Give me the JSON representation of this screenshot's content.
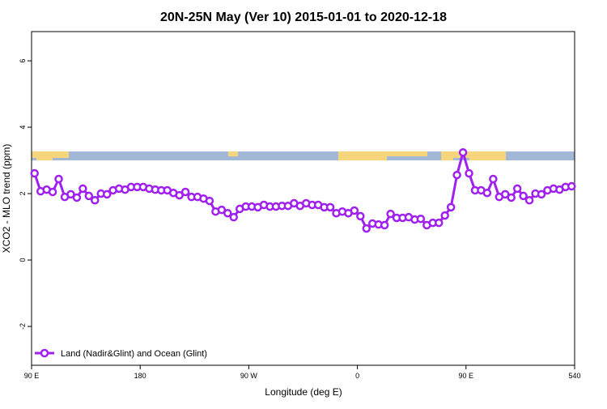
{
  "chart_data": {
    "type": "line",
    "title": "20N-25N May (Ver 10)   2015-01-01 to 2020-12-18",
    "xlabel": "Longitude (deg E)",
    "ylabel": "XCO2 - MLO trend (ppm)",
    "x": [
      92.5,
      97.5,
      102.5,
      107.5,
      112.5,
      117.5,
      122.5,
      127.5,
      132.5,
      137.5,
      142.5,
      147.5,
      152.5,
      157.5,
      162.5,
      167.5,
      172.5,
      177.5,
      182.5,
      187.5,
      192.5,
      197.5,
      202.5,
      207.5,
      212.5,
      217.5,
      222.5,
      227.5,
      232.5,
      237.5,
      242.5,
      247.5,
      252.5,
      257.5,
      262.5,
      267.5,
      272.5,
      277.5,
      282.5,
      287.5,
      292.5,
      297.5,
      302.5,
      307.5,
      312.5,
      317.5,
      322.5,
      327.5,
      332.5,
      337.5,
      342.5,
      347.5,
      352.5,
      357.5,
      362.5,
      367.5,
      372.5,
      377.5,
      382.5,
      387.5,
      392.5,
      397.5,
      402.5,
      407.5,
      412.5,
      417.5,
      422.5,
      427.5,
      432.5,
      437.5,
      442.5,
      447.5,
      452.5,
      457.5,
      462.5,
      467.5,
      472.5,
      477.5,
      482.5,
      487.5,
      492.5,
      497.5,
      502.5,
      507.5,
      512.5,
      517.5,
      522.5,
      527.5,
      532.5,
      537.5
    ],
    "series": [
      {
        "name": "Land (Nadir&Glint) and Ocean (Glint)",
        "color": "#a020f0",
        "values": [
          2.61,
          2.07,
          2.12,
          2.05,
          2.44,
          1.9,
          1.98,
          1.88,
          2.15,
          1.93,
          1.8,
          2.0,
          1.98,
          2.1,
          2.15,
          2.12,
          2.2,
          2.2,
          2.2,
          2.15,
          2.12,
          2.1,
          2.1,
          2.02,
          1.95,
          2.05,
          1.9,
          1.9,
          1.85,
          1.78,
          1.46,
          1.51,
          1.41,
          1.29,
          1.54,
          1.61,
          1.61,
          1.59,
          1.66,
          1.61,
          1.61,
          1.63,
          1.63,
          1.71,
          1.63,
          1.71,
          1.66,
          1.66,
          1.59,
          1.59,
          1.41,
          1.46,
          1.41,
          1.49,
          1.32,
          0.95,
          1.1,
          1.07,
          1.05,
          1.39,
          1.27,
          1.27,
          1.29,
          1.22,
          1.24,
          1.05,
          1.12,
          1.12,
          1.34,
          1.59,
          2.56,
          3.24,
          2.61,
          2.1,
          2.1,
          2.02,
          2.44,
          1.9,
          1.98,
          1.88,
          2.15,
          1.93,
          1.8,
          2.0,
          1.98,
          2.1,
          2.15,
          2.12,
          2.2,
          2.22
        ]
      }
    ],
    "xlim": [
      90,
      540
    ],
    "xticks": [
      {
        "value": 90,
        "label": "90 E"
      },
      180,
      {
        "value": 270,
        "label": "90 W"
      },
      {
        "value": 360,
        "label": "0"
      },
      {
        "value": 450,
        "label": "90 E"
      },
      540
    ],
    "ylim": [
      -3.17,
      6.88
    ],
    "yticks": [
      -2,
      0,
      2,
      4,
      6
    ],
    "legend": "bottom left"
  }
}
